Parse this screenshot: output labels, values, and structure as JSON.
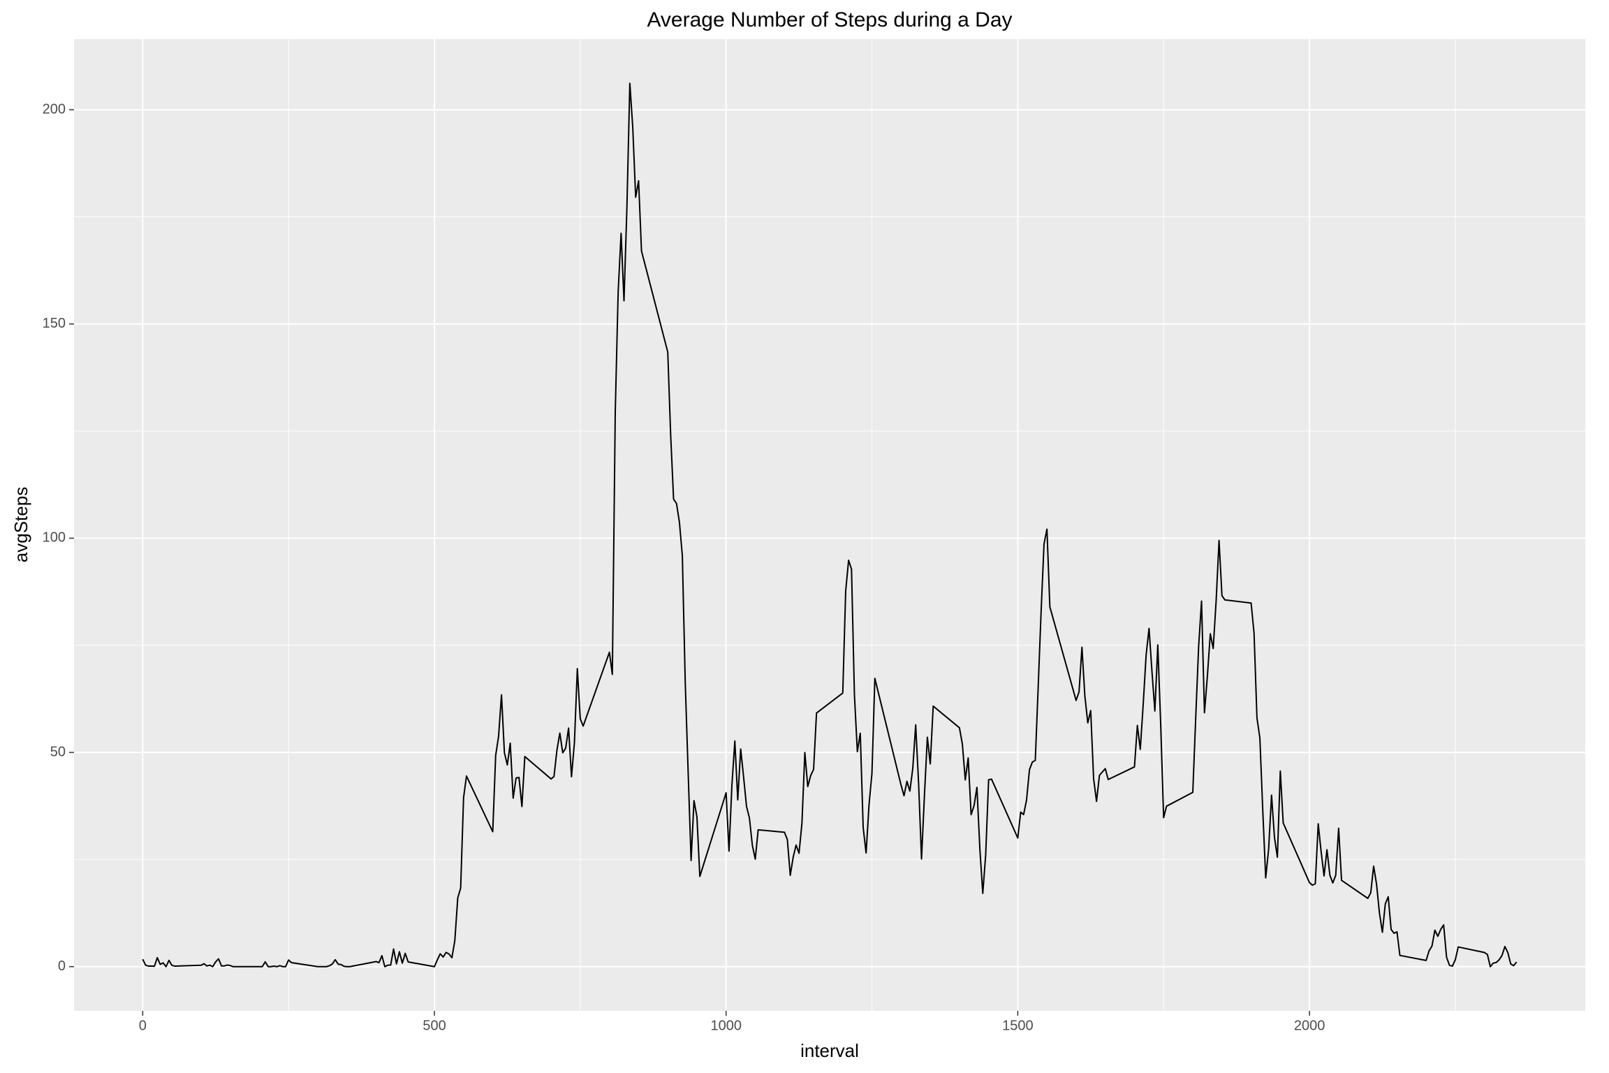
{
  "chart_data": {
    "type": "line",
    "title": "Average Number of Steps during a Day",
    "xlabel": "interval",
    "ylabel": "avgSteps",
    "color": "#000000",
    "xlim": [
      -117.75,
      2472.75
    ],
    "xticks": [
      0,
      500,
      1000,
      1500,
      2000
    ],
    "minor_xticks": [
      250,
      750,
      1250,
      1750,
      2250
    ],
    "ylim": [
      -10.31,
      216.48
    ],
    "yticks": [
      0,
      50,
      100,
      150,
      200
    ],
    "minor_yticks": [
      25,
      75,
      125,
      175
    ],
    "grid": true,
    "x": [
      0,
      5,
      10,
      15,
      20,
      25,
      30,
      35,
      40,
      45,
      50,
      55,
      100,
      105,
      110,
      115,
      120,
      125,
      130,
      135,
      140,
      145,
      150,
      155,
      200,
      205,
      210,
      215,
      220,
      225,
      230,
      235,
      240,
      245,
      250,
      255,
      300,
      305,
      310,
      315,
      320,
      325,
      330,
      335,
      340,
      345,
      350,
      355,
      400,
      405,
      410,
      415,
      420,
      425,
      430,
      435,
      440,
      445,
      450,
      455,
      500,
      505,
      510,
      515,
      520,
      525,
      530,
      535,
      540,
      545,
      550,
      555,
      600,
      605,
      610,
      615,
      620,
      625,
      630,
      635,
      640,
      645,
      650,
      655,
      700,
      705,
      710,
      715,
      720,
      725,
      730,
      735,
      740,
      745,
      750,
      755,
      800,
      805,
      810,
      815,
      820,
      825,
      830,
      835,
      840,
      845,
      850,
      855,
      900,
      905,
      910,
      915,
      920,
      925,
      930,
      935,
      940,
      945,
      950,
      955,
      1000,
      1005,
      1010,
      1015,
      1020,
      1025,
      1030,
      1035,
      1040,
      1045,
      1050,
      1055,
      1100,
      1105,
      1110,
      1115,
      1120,
      1125,
      1130,
      1135,
      1140,
      1145,
      1150,
      1155,
      1200,
      1205,
      1210,
      1215,
      1220,
      1225,
      1230,
      1235,
      1240,
      1245,
      1250,
      1255,
      1300,
      1305,
      1310,
      1315,
      1320,
      1325,
      1330,
      1335,
      1340,
      1345,
      1350,
      1355,
      1400,
      1405,
      1410,
      1415,
      1420,
      1425,
      1430,
      1435,
      1440,
      1445,
      1450,
      1455,
      1500,
      1505,
      1510,
      1515,
      1520,
      1525,
      1530,
      1535,
      1540,
      1545,
      1550,
      1555,
      1600,
      1605,
      1610,
      1615,
      1620,
      1625,
      1630,
      1635,
      1640,
      1645,
      1650,
      1655,
      1700,
      1705,
      1710,
      1715,
      1720,
      1725,
      1730,
      1735,
      1740,
      1745,
      1750,
      1755,
      1800,
      1805,
      1810,
      1815,
      1820,
      1825,
      1830,
      1835,
      1840,
      1845,
      1850,
      1855,
      1900,
      1905,
      1910,
      1915,
      1920,
      1925,
      1930,
      1935,
      1940,
      1945,
      1950,
      1955,
      2000,
      2005,
      2010,
      2015,
      2020,
      2025,
      2030,
      2035,
      2040,
      2045,
      2050,
      2055,
      2100,
      2105,
      2110,
      2115,
      2120,
      2125,
      2130,
      2135,
      2140,
      2145,
      2150,
      2155,
      2200,
      2205,
      2210,
      2215,
      2220,
      2225,
      2230,
      2235,
      2240,
      2245,
      2250,
      2255,
      2300,
      2305,
      2310,
      2315,
      2320,
      2325,
      2330,
      2335,
      2340,
      2345,
      2350,
      2355
    ],
    "values": [
      1.72,
      0.34,
      0.13,
      0.15,
      0.08,
      2.09,
      0.53,
      0.87,
      0,
      1.47,
      0.3,
      0.13,
      0.32,
      0.68,
      0.15,
      0.34,
      0,
      1.11,
      1.83,
      0.17,
      0.17,
      0.38,
      0.26,
      0,
      0,
      0,
      1.13,
      0,
      0,
      0.13,
      0,
      0.23,
      0,
      0,
      1.55,
      0.94,
      0,
      0,
      0,
      0,
      0.21,
      0.62,
      1.62,
      0.58,
      0.49,
      0.08,
      0,
      0,
      1.19,
      0.94,
      2.57,
      0,
      0.34,
      0.36,
      4.11,
      0.66,
      3.49,
      0.83,
      3.11,
      1.11,
      0,
      1.57,
      3,
      2.25,
      3.32,
      2.96,
      2.09,
      6.06,
      16.02,
      18.34,
      39.45,
      44.49,
      31.49,
      49.26,
      53.77,
      63.45,
      49.96,
      47.08,
      52.15,
      39.34,
      44.02,
      44.17,
      37.36,
      49.04,
      43.81,
      44.38,
      50.51,
      54.51,
      49.92,
      50.98,
      55.68,
      44.32,
      52.26,
      69.55,
      57.85,
      56.15,
      73.38,
      68.21,
      129.43,
      157.53,
      171.15,
      155.4,
      177.3,
      206.17,
      195.92,
      179.57,
      183.4,
      167.02,
      143.45,
      124.04,
      109.11,
      108.11,
      103.72,
      95.96,
      66.21,
      45.23,
      24.79,
      38.75,
      34.98,
      21.06,
      40.57,
      26.98,
      42.42,
      52.66,
      38.92,
      50.79,
      44.28,
      37.42,
      34.7,
      28.34,
      25.09,
      31.94,
      31.36,
      29.68,
      21.32,
      25.55,
      28.38,
      26.47,
      33.43,
      49.98,
      42.04,
      44.6,
      46.04,
      59.19,
      63.87,
      87.7,
      94.85,
      92.77,
      63.4,
      50.17,
      54.47,
      32.42,
      26.53,
      37.74,
      45.06,
      67.28,
      42.34,
      39.89,
      43.26,
      40.98,
      46.25,
      56.43,
      42.75,
      25.13,
      39.96,
      53.55,
      47.32,
      60.81,
      55.75,
      51.96,
      43.58,
      48.7,
      35.47,
      37.55,
      41.85,
      27.51,
      17.11,
      26.08,
      43.62,
      43.77,
      30.02,
      36.08,
      35.49,
      38.85,
      45.96,
      47.75,
      48.13,
      65.32,
      82.91,
      98.66,
      102.11,
      83.96,
      62.13,
      64.13,
      74.55,
      63.17,
      56.91,
      59.77,
      43.87,
      38.57,
      44.66,
      45.45,
      46.21,
      43.68,
      46.62,
      56.3,
      50.72,
      61.23,
      72.72,
      78.94,
      68.94,
      59.66,
      75.09,
      56.51,
      34.77,
      37.45,
      40.68,
      58.02,
      74.7,
      85.32,
      59.26,
      67.77,
      77.7,
      74.25,
      85.34,
      99.45,
      86.58,
      85.6,
      84.87,
      77.83,
      58.04,
      53.36,
      36.32,
      20.72,
      27.4,
      40.02,
      30.21,
      25.55,
      45.66,
      33.53,
      19.62,
      19.02,
      19.34,
      33.34,
      26.81,
      21.17,
      27.3,
      21.34,
      19.55,
      21.32,
      32.3,
      20.15,
      15.94,
      17.23,
      23.45,
      19.25,
      12.45,
      8.02,
      14.66,
      16.3,
      8.68,
      7.79,
      8.13,
      2.62,
      1.45,
      3.68,
      4.81,
      8.51,
      7.08,
      8.7,
      9.75,
      2.21,
      0.32,
      0.11,
      1.6,
      4.6,
      3.3,
      2.85,
      0,
      0.83,
      0.96,
      1.58,
      2.6,
      4.7,
      3.3,
      0.64,
      0.23,
      1.08
    ]
  }
}
